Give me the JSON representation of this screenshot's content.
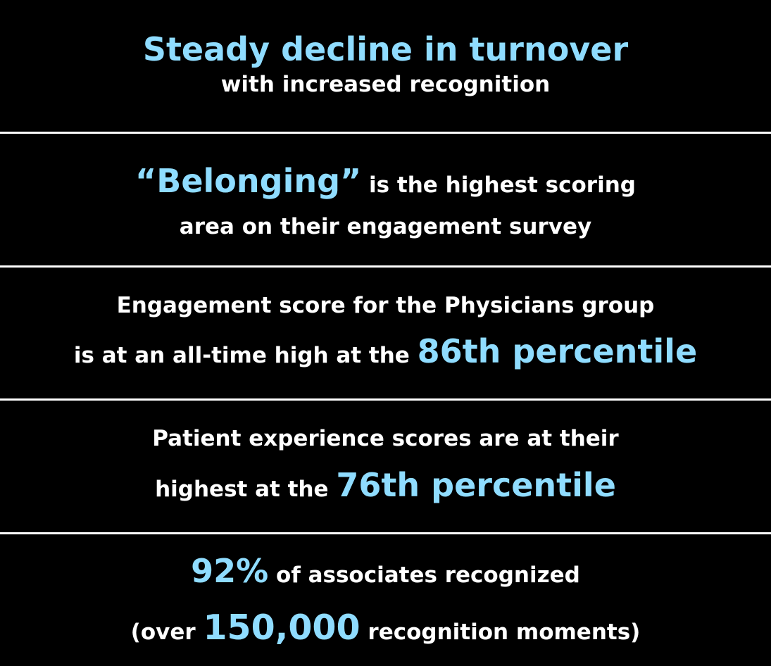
{
  "colors": {
    "background": "#000000",
    "text": "#ffffff",
    "accent": "#8fdcff",
    "divider": "#ffffff"
  },
  "panels": [
    {
      "headline": "Steady decline in turnover",
      "subline": "with increased recognition"
    },
    {
      "accent": "“Belonging”",
      "line1_rest": " is the highest scoring",
      "line2": "area on their engagement survey"
    },
    {
      "line1": "Engagement score for the Physicians group",
      "line2_lead": "is at an all-time high at the ",
      "accent": "86th percentile"
    },
    {
      "line1": "Patient experience scores are at their",
      "line2_lead": "highest at the ",
      "accent": "76th percentile"
    },
    {
      "accent1": "92%",
      "line1_rest": " of associates recognized",
      "line2_lead": "(over ",
      "accent2": "150,000",
      "line2_rest": " recognition moments)"
    }
  ]
}
